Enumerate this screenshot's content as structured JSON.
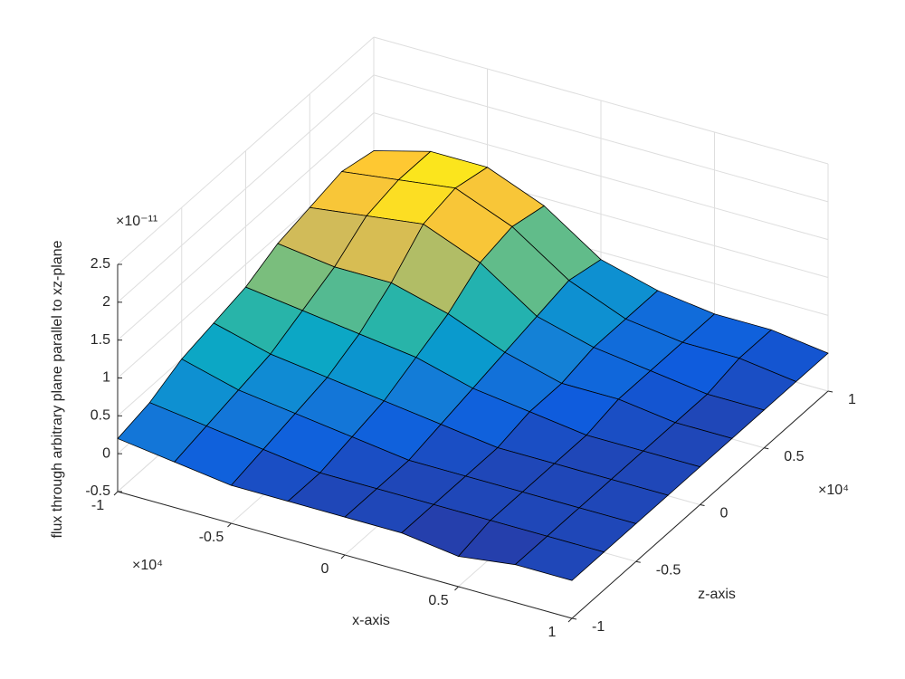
{
  "chart_data": {
    "type": "surface",
    "xlabel": "x-axis",
    "ylabel": "z-axis",
    "zlabel": "flux through arbitrary plane parallel to xz-plane",
    "x_multiplier": "×10⁴",
    "y_multiplier": "×10⁴",
    "z_multiplier": "×10⁻¹¹",
    "x": [
      -1,
      -0.75,
      -0.5,
      -0.25,
      0,
      0.25,
      0.5,
      0.75,
      1
    ],
    "y": [
      -1,
      -0.75,
      -0.5,
      -0.25,
      0,
      0.25,
      0.5,
      0.75,
      1
    ],
    "z": [
      [
        0.2,
        0.1,
        0,
        0,
        0,
        0,
        -0.1,
        0,
        0
      ],
      [
        0.3,
        0.2,
        0.1,
        0,
        0,
        0,
        0,
        0,
        0
      ],
      [
        0.5,
        0.3,
        0.2,
        0.1,
        0,
        0,
        0,
        0,
        0
      ],
      [
        0.6,
        0.4,
        0.3,
        0.2,
        0.1,
        0,
        0,
        0,
        0
      ],
      [
        0.7,
        0.6,
        0.5,
        0.4,
        0.2,
        0.1,
        0,
        0,
        0
      ],
      [
        0.9,
        0.8,
        0.8,
        0.6,
        0.3,
        0.1,
        0.1,
        0,
        0
      ],
      [
        1,
        1.1,
        1.2,
        0.9,
        0.4,
        0.2,
        0.1,
        0,
        0
      ],
      [
        1.1,
        1.2,
        1.3,
        1,
        0.5,
        0.2,
        0.1,
        0.1,
        0
      ],
      [
        1,
        1.2,
        1.2,
        0.9,
        0.4,
        0.2,
        0.1,
        0.1,
        0
      ]
    ],
    "xlim": [
      -1,
      1
    ],
    "ylim": [
      -1,
      1
    ],
    "zlim": [
      -0.5,
      2.5
    ],
    "xticks": [
      -1,
      -0.5,
      0,
      0.5,
      1
    ],
    "yticks": [
      -1,
      -0.5,
      0,
      0.5,
      1
    ],
    "zticks": [
      -0.5,
      0,
      0.5,
      1,
      1.5,
      2,
      2.5
    ],
    "grid": true,
    "colormap": "parula",
    "edge_color": "#000000"
  }
}
